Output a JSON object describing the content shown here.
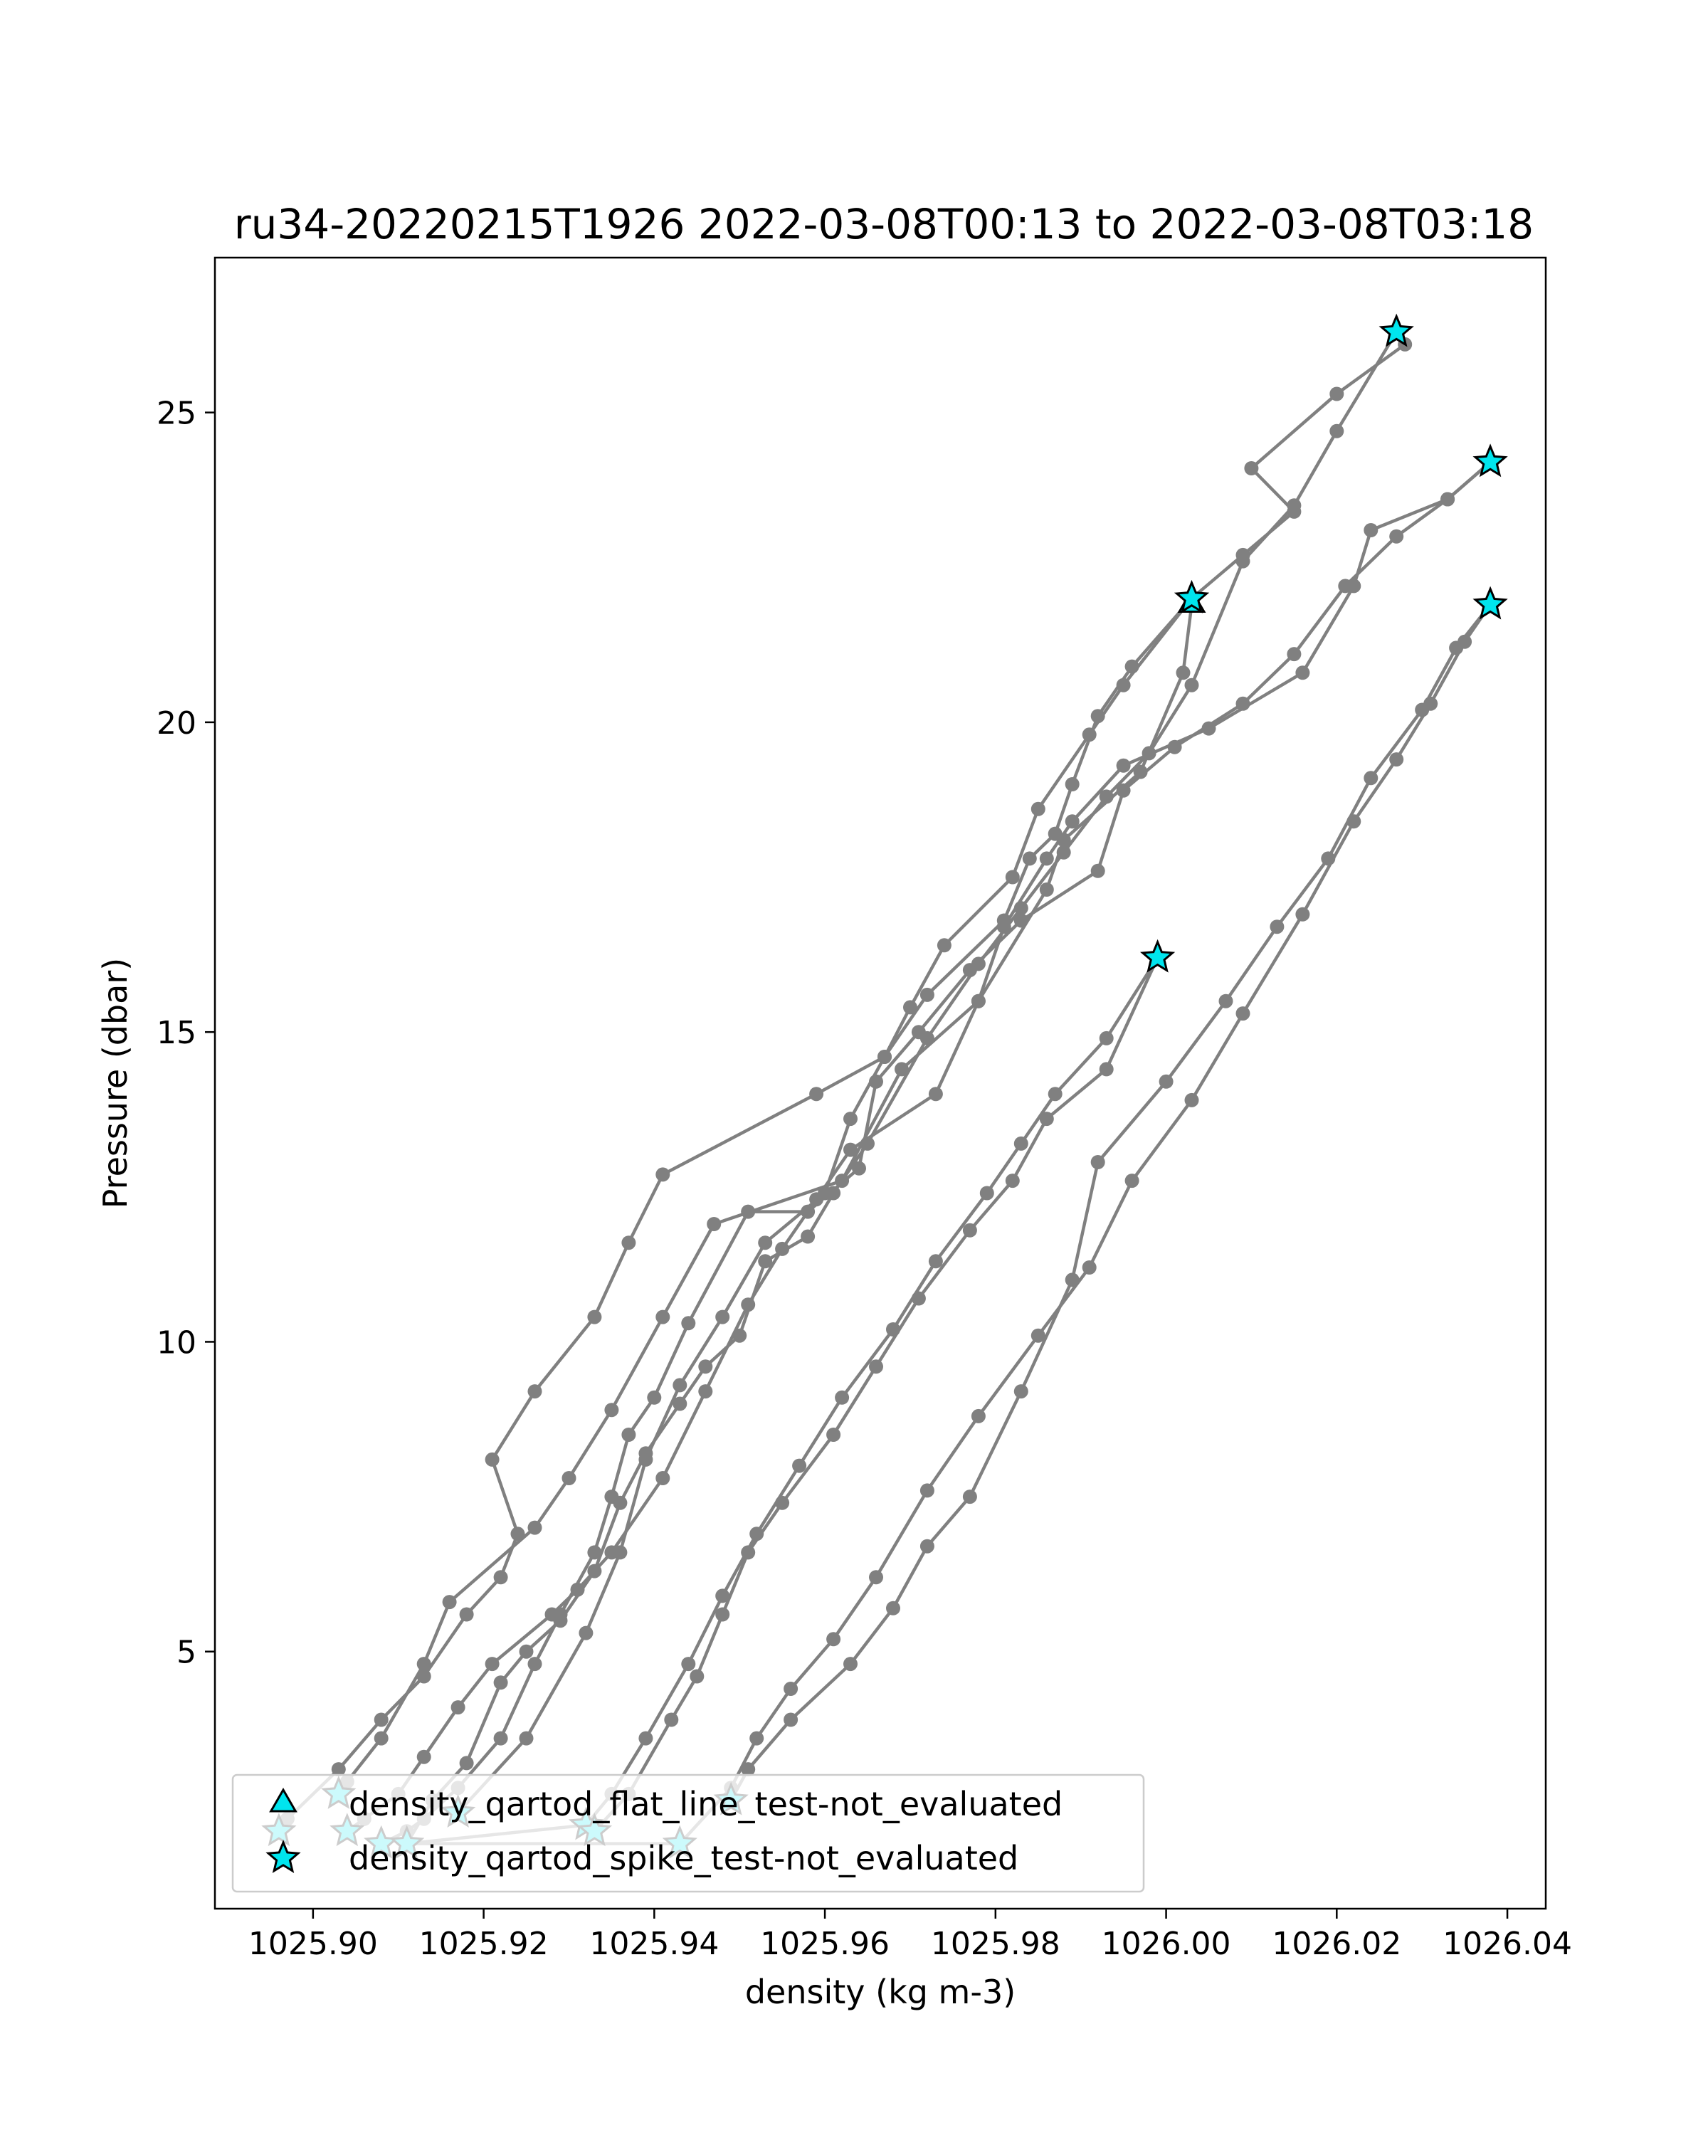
{
  "chart_data": {
    "type": "line",
    "title": "ru34-20220215T1926 2022-03-08T00:13 to 2022-03-08T03:18",
    "xlabel": "density (kg m-3)",
    "ylabel": "Pressure (dbar)",
    "xlim": [
      1025.8885,
      1026.0445
    ],
    "ylim": [
      27.5,
      0.85
    ],
    "y_inverted": true,
    "x_ticks": [
      1025.9,
      1025.92,
      1025.94,
      1025.96,
      1025.98,
      1026.0,
      1026.02,
      1026.04
    ],
    "x_tick_labels": [
      "1025.90",
      "1025.92",
      "1025.94",
      "1025.96",
      "1025.98",
      "1026.00",
      "1026.02",
      "1026.04"
    ],
    "y_ticks": [
      5,
      10,
      15,
      20,
      25
    ],
    "y_tick_labels": [
      "5",
      "10",
      "15",
      "20",
      "25"
    ],
    "grid": false,
    "legend_position": "lower-left",
    "colors": {
      "line": "#808080",
      "marker_fill": "#00e5ee",
      "marker_edge": "#000000"
    },
    "series": [
      {
        "points": [
          [
            1025.896,
            2.1
          ],
          [
            1025.897,
            2.3
          ],
          [
            1025.903,
            3.1
          ],
          [
            1025.908,
            3.9
          ],
          [
            1025.913,
            4.6
          ],
          [
            1025.918,
            5.6
          ],
          [
            1025.922,
            6.2
          ],
          [
            1025.924,
            6.9
          ],
          [
            1025.921,
            8.1
          ],
          [
            1025.926,
            9.2
          ],
          [
            1025.933,
            10.4
          ],
          [
            1025.937,
            11.6
          ],
          [
            1025.941,
            12.7
          ],
          [
            1025.959,
            14.0
          ],
          [
            1025.967,
            14.6
          ],
          [
            1025.972,
            15.6
          ],
          [
            1025.981,
            16.8
          ],
          [
            1025.984,
            17.8
          ],
          [
            1025.987,
            18.2
          ],
          [
            1025.989,
            19.0
          ],
          [
            1025.992,
            20.1
          ],
          [
            1025.996,
            20.9
          ],
          [
            1026.003,
            22.0
          ]
        ]
      },
      {
        "points": [
          [
            1025.903,
            2.7
          ],
          [
            1025.904,
            2.9
          ],
          [
            1025.908,
            3.6
          ],
          [
            1025.913,
            4.8
          ],
          [
            1025.916,
            5.8
          ],
          [
            1025.926,
            7.0
          ],
          [
            1025.93,
            7.8
          ],
          [
            1025.935,
            8.9
          ],
          [
            1025.941,
            10.4
          ],
          [
            1025.947,
            11.9
          ],
          [
            1025.962,
            12.6
          ],
          [
            1025.969,
            14.4
          ],
          [
            1025.978,
            15.5
          ],
          [
            1025.986,
            17.3
          ],
          [
            1025.988,
            18.1
          ],
          [
            1025.997,
            19.2
          ],
          [
            1026.002,
            20.8
          ],
          [
            1026.003,
            21.9
          ]
        ]
      },
      {
        "points": [
          [
            1025.904,
            2.1
          ],
          [
            1025.906,
            2.3
          ],
          [
            1025.91,
            2.7
          ],
          [
            1025.913,
            3.3
          ],
          [
            1025.917,
            4.1
          ],
          [
            1025.921,
            4.8
          ],
          [
            1025.928,
            5.6
          ],
          [
            1025.931,
            6.0
          ],
          [
            1025.935,
            6.6
          ],
          [
            1025.941,
            7.8
          ],
          [
            1025.946,
            9.2
          ],
          [
            1025.951,
            10.6
          ],
          [
            1025.955,
            11.5
          ],
          [
            1025.959,
            12.3
          ],
          [
            1025.963,
            13.1
          ],
          [
            1025.973,
            14.0
          ],
          [
            1025.978,
            15.5
          ],
          [
            1025.981,
            16.7
          ],
          [
            1025.986,
            17.8
          ],
          [
            1025.989,
            18.4
          ],
          [
            1025.995,
            19.3
          ],
          [
            1026.005,
            19.9
          ],
          [
            1026.016,
            20.8
          ],
          [
            1026.022,
            22.2
          ],
          [
            1026.024,
            23.1
          ],
          [
            1026.033,
            23.6
          ],
          [
            1026.038,
            24.2
          ]
        ]
      },
      {
        "points": [
          [
            1025.908,
            1.9
          ],
          [
            1025.911,
            2.1
          ],
          [
            1025.913,
            2.3
          ],
          [
            1025.917,
            2.8
          ],
          [
            1025.922,
            3.6
          ],
          [
            1025.926,
            4.8
          ],
          [
            1025.929,
            5.6
          ],
          [
            1025.933,
            6.6
          ],
          [
            1025.935,
            7.5
          ],
          [
            1025.937,
            8.5
          ],
          [
            1025.94,
            9.1
          ],
          [
            1025.944,
            10.3
          ],
          [
            1025.951,
            12.1
          ],
          [
            1025.958,
            12.1
          ],
          [
            1025.964,
            12.8
          ],
          [
            1025.966,
            14.2
          ],
          [
            1025.971,
            15.0
          ],
          [
            1025.977,
            16.0
          ],
          [
            1025.983,
            16.8
          ],
          [
            1025.992,
            17.6
          ],
          [
            1025.995,
            18.9
          ],
          [
            1026.001,
            19.6
          ],
          [
            1026.009,
            20.3
          ],
          [
            1026.015,
            21.1
          ],
          [
            1026.021,
            22.2
          ],
          [
            1026.027,
            23.0
          ],
          [
            1026.033,
            23.6
          ],
          [
            1026.038,
            24.2
          ]
        ]
      },
      {
        "points": [
          [
            1025.911,
            1.9
          ],
          [
            1025.914,
            2.6
          ],
          [
            1025.918,
            3.2
          ],
          [
            1025.922,
            4.5
          ],
          [
            1025.925,
            5.0
          ],
          [
            1025.929,
            5.5
          ],
          [
            1025.933,
            6.3
          ],
          [
            1025.936,
            7.4
          ],
          [
            1025.939,
            8.2
          ],
          [
            1025.943,
            9.0
          ],
          [
            1025.946,
            9.6
          ],
          [
            1025.95,
            10.1
          ],
          [
            1025.953,
            11.3
          ],
          [
            1025.958,
            11.7
          ],
          [
            1025.961,
            12.4
          ],
          [
            1025.965,
            13.2
          ],
          [
            1025.972,
            14.9
          ],
          [
            1025.978,
            16.1
          ],
          [
            1025.983,
            17.0
          ],
          [
            1025.988,
            17.9
          ],
          [
            1025.993,
            18.8
          ],
          [
            1025.998,
            19.5
          ],
          [
            1026.003,
            20.6
          ],
          [
            1026.009,
            22.6
          ],
          [
            1026.015,
            23.5
          ],
          [
            1026.02,
            24.7
          ],
          [
            1026.027,
            26.3
          ]
        ]
      },
      {
        "points": [
          [
            1025.917,
            2.4
          ],
          [
            1025.925,
            3.6
          ],
          [
            1025.932,
            5.3
          ],
          [
            1025.936,
            6.6
          ],
          [
            1025.939,
            8.1
          ],
          [
            1025.943,
            9.3
          ],
          [
            1025.948,
            10.4
          ],
          [
            1025.953,
            11.6
          ],
          [
            1025.96,
            12.4
          ],
          [
            1025.963,
            13.6
          ],
          [
            1025.967,
            14.6
          ],
          [
            1025.97,
            15.4
          ],
          [
            1025.974,
            16.4
          ],
          [
            1025.982,
            17.5
          ],
          [
            1025.985,
            18.6
          ],
          [
            1025.991,
            19.8
          ],
          [
            1025.995,
            20.6
          ],
          [
            1026.003,
            22.0
          ],
          [
            1026.009,
            22.7
          ],
          [
            1026.015,
            23.4
          ],
          [
            1026.01,
            24.1
          ],
          [
            1026.02,
            25.3
          ],
          [
            1026.028,
            26.1
          ]
        ]
      },
      {
        "points": [
          [
            1025.932,
            2.2
          ],
          [
            1025.935,
            2.7
          ],
          [
            1025.939,
            3.6
          ],
          [
            1025.944,
            4.8
          ],
          [
            1025.948,
            5.9
          ],
          [
            1025.952,
            6.9
          ],
          [
            1025.957,
            8.0
          ],
          [
            1025.962,
            9.1
          ],
          [
            1025.968,
            10.2
          ],
          [
            1025.973,
            11.3
          ],
          [
            1025.979,
            12.4
          ],
          [
            1025.983,
            13.2
          ],
          [
            1025.987,
            14.0
          ],
          [
            1025.993,
            14.9
          ],
          [
            1025.999,
            16.2
          ]
        ]
      },
      {
        "points": [
          [
            1025.933,
            2.1
          ],
          [
            1025.937,
            2.7
          ],
          [
            1025.942,
            3.9
          ],
          [
            1025.945,
            4.6
          ],
          [
            1025.948,
            5.6
          ],
          [
            1025.951,
            6.6
          ],
          [
            1025.955,
            7.4
          ],
          [
            1025.961,
            8.5
          ],
          [
            1025.966,
            9.6
          ],
          [
            1025.971,
            10.7
          ],
          [
            1025.977,
            11.8
          ],
          [
            1025.982,
            12.6
          ],
          [
            1025.986,
            13.6
          ],
          [
            1025.993,
            14.4
          ],
          [
            1025.999,
            16.2
          ]
        ]
      },
      {
        "points": [
          [
            1025.943,
            1.9
          ],
          [
            1025.949,
            2.8
          ],
          [
            1025.952,
            3.6
          ],
          [
            1025.956,
            4.4
          ],
          [
            1025.961,
            5.2
          ],
          [
            1025.966,
            6.2
          ],
          [
            1025.972,
            7.6
          ],
          [
            1025.978,
            8.8
          ],
          [
            1025.985,
            10.1
          ],
          [
            1025.991,
            11.2
          ],
          [
            1025.996,
            12.6
          ],
          [
            1026.003,
            13.9
          ],
          [
            1026.009,
            15.3
          ],
          [
            1026.016,
            16.9
          ],
          [
            1026.022,
            18.4
          ],
          [
            1026.027,
            19.4
          ],
          [
            1026.031,
            20.3
          ],
          [
            1026.035,
            21.3
          ],
          [
            1026.038,
            21.9
          ]
        ]
      },
      {
        "points": [
          [
            1025.949,
            2.6
          ],
          [
            1025.951,
            3.1
          ],
          [
            1025.956,
            3.9
          ],
          [
            1025.963,
            4.8
          ],
          [
            1025.968,
            5.7
          ],
          [
            1025.972,
            6.7
          ],
          [
            1025.977,
            7.5
          ],
          [
            1025.983,
            9.2
          ],
          [
            1025.989,
            11.0
          ],
          [
            1025.992,
            12.9
          ],
          [
            1026.0,
            14.2
          ],
          [
            1026.007,
            15.5
          ],
          [
            1026.013,
            16.7
          ],
          [
            1026.019,
            17.8
          ],
          [
            1026.024,
            19.1
          ],
          [
            1026.03,
            20.2
          ],
          [
            1026.034,
            21.2
          ],
          [
            1026.038,
            21.9
          ]
        ]
      }
    ],
    "connectors": [
      {
        "points": [
          [
            1025.911,
            1.9
          ],
          [
            1025.932,
            2.2
          ]
        ]
      },
      {
        "points": [
          [
            1025.911,
            1.9
          ],
          [
            1025.943,
            1.9
          ]
        ]
      }
    ],
    "flagged": [
      {
        "x": 1025.896,
        "y": 2.1,
        "test": "spike"
      },
      {
        "x": 1025.903,
        "y": 2.7,
        "test": "spike"
      },
      {
        "x": 1025.904,
        "y": 2.1,
        "test": "spike"
      },
      {
        "x": 1025.908,
        "y": 1.9,
        "test": "spike"
      },
      {
        "x": 1025.911,
        "y": 1.9,
        "test": "spike"
      },
      {
        "x": 1025.917,
        "y": 2.4,
        "test": "spike"
      },
      {
        "x": 1025.932,
        "y": 2.2,
        "test": "spike"
      },
      {
        "x": 1025.933,
        "y": 2.1,
        "test": "spike"
      },
      {
        "x": 1025.943,
        "y": 1.9,
        "test": "spike"
      },
      {
        "x": 1025.949,
        "y": 2.6,
        "test": "spike"
      },
      {
        "x": 1025.999,
        "y": 16.2,
        "test": "spike"
      },
      {
        "x": 1026.003,
        "y": 21.9,
        "test": "flat_line"
      },
      {
        "x": 1026.003,
        "y": 22.0,
        "test": "spike"
      },
      {
        "x": 1026.038,
        "y": 21.9,
        "test": "spike"
      },
      {
        "x": 1026.038,
        "y": 24.2,
        "test": "spike"
      },
      {
        "x": 1026.027,
        "y": 26.3,
        "test": "spike"
      }
    ],
    "legend": [
      {
        "marker": "triangle",
        "label": "density_qartod_flat_line_test-not_evaluated"
      },
      {
        "marker": "star",
        "label": "density_qartod_spike_test-not_evaluated"
      }
    ]
  }
}
